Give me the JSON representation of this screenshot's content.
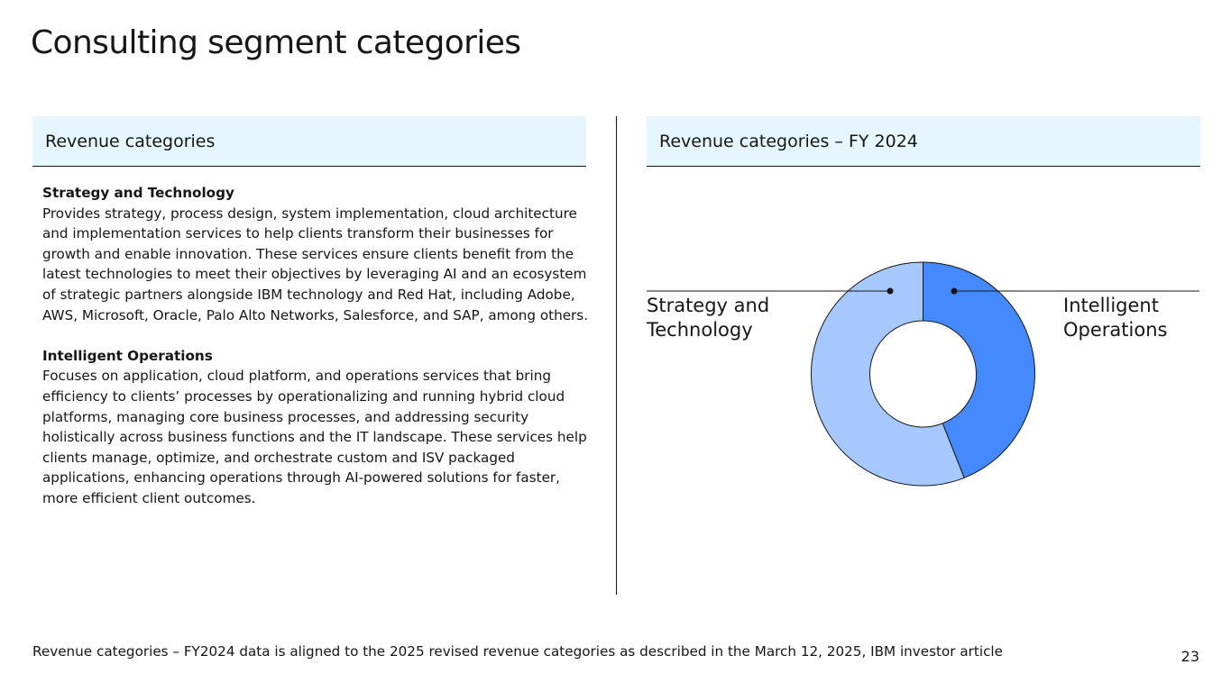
{
  "slide": {
    "title": "Consulting segment categories",
    "page_number": "23",
    "footnote": "Revenue categories – FY2024 data is aligned to the 2025 revised revenue categories as described in the March 12, 2025, IBM investor article"
  },
  "left_panel": {
    "header": "Revenue categories",
    "sections": [
      {
        "title": "Strategy and Technology",
        "description": "Provides strategy, process design, system implementation, cloud architecture and implementation services to help clients transform their businesses for growth and enable innovation. These services ensure clients benefit from the latest technologies to meet their objectives by leveraging AI and an ecosystem of strategic partners alongside IBM technology and Red Hat, including Adobe, AWS, Microsoft, Oracle, Palo Alto Networks, Salesforce, and SAP, among others."
      },
      {
        "title": "Intelligent Operations",
        "description": "Focuses on application, cloud platform, and operations services that bring efficiency to clients’ processes by operationalizing and running hybrid cloud platforms, managing core business processes, and addressing security holistically across business functions and the IT landscape. These services help clients manage, optimize, and orchestrate custom and ISV packaged applications, enhancing operations through AI-powered solutions for faster, more efficient client outcomes."
      }
    ]
  },
  "right_panel": {
    "header": "Revenue categories – FY 2024"
  },
  "chart_data": {
    "type": "pie",
    "variant": "donut",
    "title": "Revenue categories – FY 2024",
    "categories": [
      "Intelligent Operations",
      "Strategy and Technology"
    ],
    "values": [
      44,
      56
    ],
    "label_lines": [
      [
        "Intelligent",
        "Operations"
      ],
      [
        "Strategy and",
        "Technology"
      ]
    ],
    "colors": [
      "#4589ff",
      "#a6c8ff"
    ],
    "stroke_color": "#161616",
    "legend": "none"
  }
}
